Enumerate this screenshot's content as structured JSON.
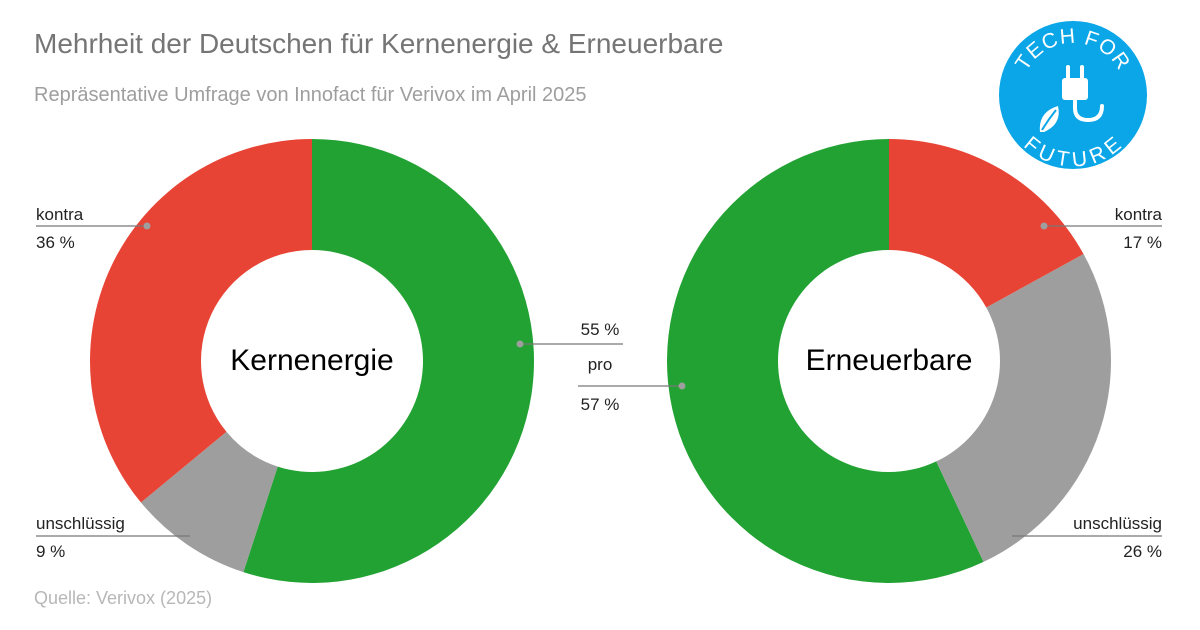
{
  "header": {
    "title": "Mehrheit der Deutschen für Kernenergie & Erneuerbare",
    "subtitle": "Repräsentative Umfrage von Innofact für Verivox im April 2025"
  },
  "footer": {
    "source": "Quelle: Verivox (2025)"
  },
  "logo": {
    "top_text": "TECH FOR",
    "bottom_text": "FUTURE",
    "color": "#0aa6e8"
  },
  "colors": {
    "pro": "#22a233",
    "kontra": "#e84435",
    "unschluessig": "#9e9e9e"
  },
  "chart_data": [
    {
      "type": "pie",
      "center_label": "Kernenergie",
      "slices": [
        {
          "name": "pro",
          "value": 55,
          "label": "55 %"
        },
        {
          "name": "kontra",
          "value": 36,
          "label": "36 %"
        },
        {
          "name": "unschlüssig",
          "value": 9,
          "label": "9 %"
        }
      ]
    },
    {
      "type": "pie",
      "center_label": "Erneuerbare",
      "slices": [
        {
          "name": "pro",
          "value": 57,
          "label": "57 %"
        },
        {
          "name": "kontra",
          "value": 17,
          "label": "17 %"
        },
        {
          "name": "unschlüssig",
          "value": 26,
          "label": "26 %"
        }
      ]
    }
  ]
}
